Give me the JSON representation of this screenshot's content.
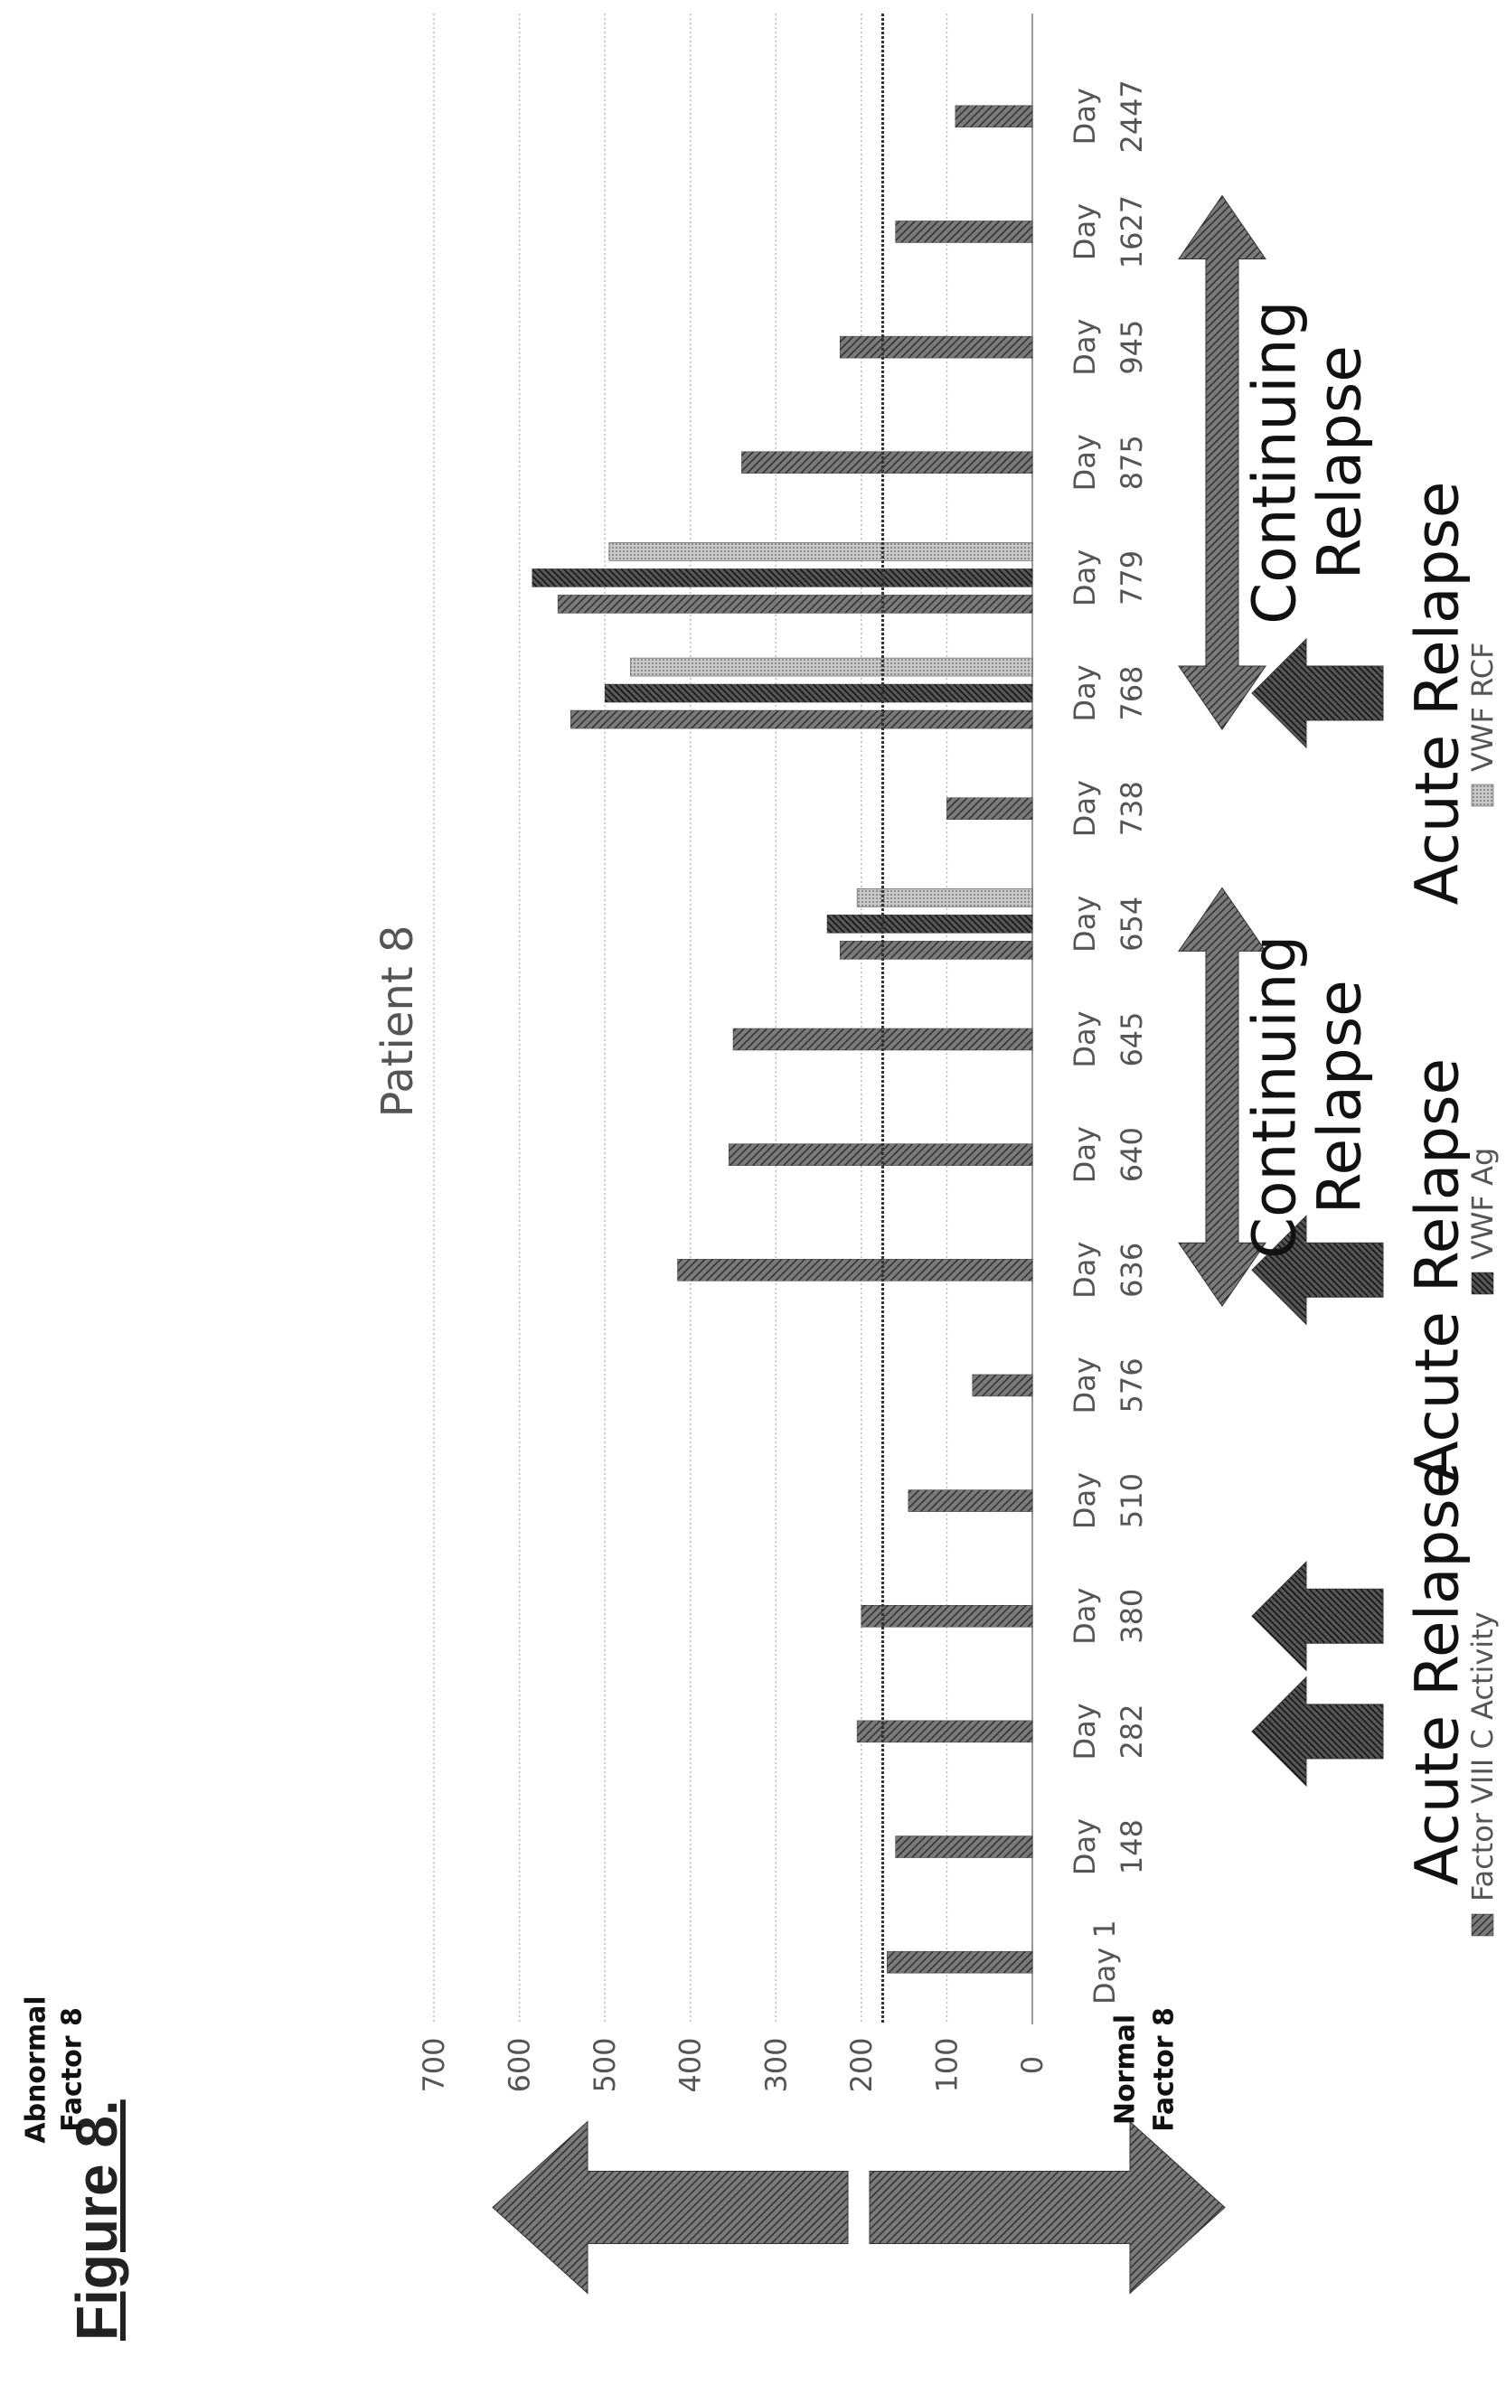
{
  "figure_label": "Figure 8.",
  "side_labels": {
    "top": [
      "Abnormal",
      "Factor 8"
    ],
    "bottom": [
      "Normal",
      "Factor 8"
    ]
  },
  "chart_data": {
    "type": "bar",
    "title": "Patient 8",
    "ylim": [
      0,
      700
    ],
    "yticks": [
      0,
      100,
      200,
      300,
      400,
      500,
      600,
      700
    ],
    "threshold": 175,
    "categories": [
      [
        "Day 1"
      ],
      [
        "Day",
        "148"
      ],
      [
        "Day",
        "282"
      ],
      [
        "Day",
        "380"
      ],
      [
        "Day",
        "510"
      ],
      [
        "Day",
        "576"
      ],
      [
        "Day",
        "636"
      ],
      [
        "Day",
        "640"
      ],
      [
        "Day",
        "645"
      ],
      [
        "Day",
        "654"
      ],
      [
        "Day",
        "738"
      ],
      [
        "Day",
        "768"
      ],
      [
        "Day",
        "779"
      ],
      [
        "Day",
        "875"
      ],
      [
        "Day",
        "945"
      ],
      [
        "Day",
        "1627"
      ],
      [
        "Day",
        "2447"
      ]
    ],
    "series": [
      {
        "name": "Factor VIII C Activity",
        "values": [
          170,
          160,
          205,
          200,
          145,
          70,
          415,
          355,
          350,
          225,
          100,
          540,
          555,
          340,
          225,
          160,
          90
        ]
      },
      {
        "name": "VWF Ag",
        "values": [
          null,
          null,
          null,
          null,
          null,
          null,
          null,
          null,
          null,
          240,
          null,
          500,
          585,
          null,
          null,
          null,
          null
        ]
      },
      {
        "name": "VWF RCF",
        "values": [
          null,
          null,
          null,
          null,
          null,
          null,
          null,
          null,
          null,
          205,
          null,
          470,
          495,
          null,
          null,
          null,
          null
        ]
      }
    ],
    "annotations": {
      "acute": [
        {
          "label": "Acute Relapse",
          "arrows": [
            2,
            3
          ]
        },
        {
          "label": "Acute Relapse",
          "arrows": [
            6
          ]
        },
        {
          "label": "Acute Relapse",
          "arrows": [
            11
          ]
        }
      ],
      "continuing": [
        {
          "label": [
            "Continuing",
            "Relapse"
          ],
          "from": 6,
          "to": 9
        },
        {
          "label": [
            "Continuing",
            "Relapse"
          ],
          "from": 11,
          "to": 15
        }
      ]
    },
    "colors": [
      "#6a6a6a",
      "#3a3a3a",
      "#b4b4b4"
    ]
  }
}
